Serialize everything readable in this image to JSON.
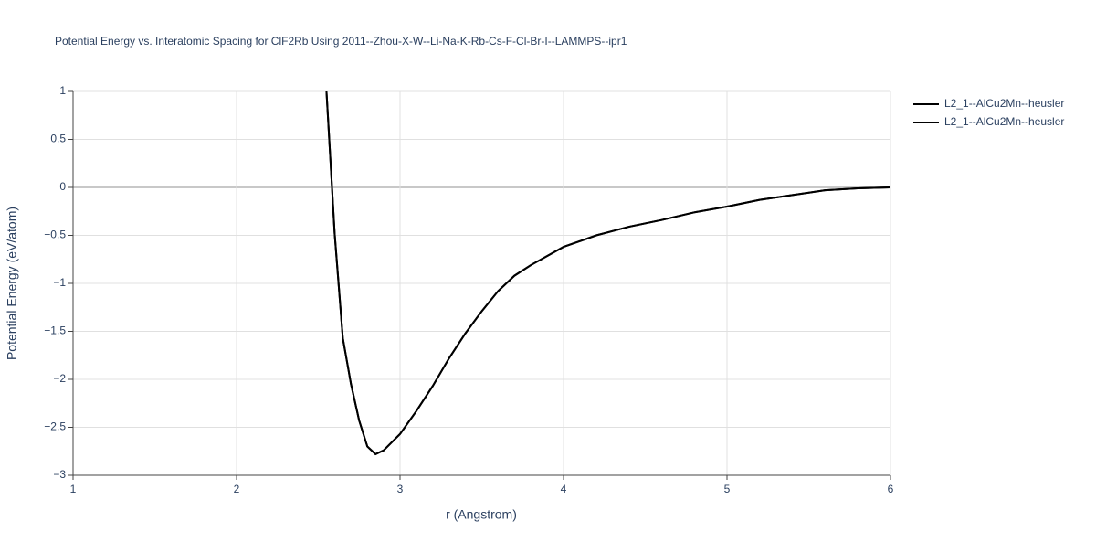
{
  "chart_data": {
    "type": "line",
    "title": "Potential Energy vs. Interatomic Spacing for ClF2Rb Using 2011--Zhou-X-W--Li-Na-K-Rb-Cs-F-Cl-Br-I--LAMMPS--ipr1",
    "x_label": "r (Angstrom)",
    "y_label": "Potential Energy (eV/atom)",
    "xlim": [
      1,
      6
    ],
    "ylim": [
      -3,
      1
    ],
    "xticks": [
      1,
      2,
      3,
      4,
      5,
      6
    ],
    "yticks": [
      {
        "value": -3,
        "label": "−3"
      },
      {
        "value": -2.5,
        "label": "−2.5"
      },
      {
        "value": -2,
        "label": "−2"
      },
      {
        "value": -1.5,
        "label": "−1.5"
      },
      {
        "value": -1,
        "label": "−1"
      },
      {
        "value": -0.5,
        "label": "−0.5"
      },
      0,
      0.5,
      1
    ],
    "grid": true,
    "x": [
      2.55,
      2.6,
      2.65,
      2.7,
      2.75,
      2.8,
      2.85,
      2.9,
      3.0,
      3.1,
      3.2,
      3.3,
      3.4,
      3.5,
      3.6,
      3.7,
      3.8,
      4.0,
      4.2,
      4.4,
      4.6,
      4.8,
      5.0,
      5.2,
      5.4,
      5.6,
      5.8,
      6.0
    ],
    "series": [
      {
        "name": "L2_1--AlCu2Mn--heusler",
        "color": "#000000",
        "values": [
          1.0,
          -0.48,
          -1.57,
          -2.05,
          -2.43,
          -2.7,
          -2.78,
          -2.74,
          -2.57,
          -2.33,
          -2.07,
          -1.78,
          -1.52,
          -1.29,
          -1.08,
          -0.92,
          -0.81,
          -0.62,
          -0.5,
          -0.41,
          -0.34,
          -0.26,
          -0.2,
          -0.13,
          -0.08,
          -0.03,
          -0.01,
          0
        ]
      },
      {
        "name": "L2_1--AlCu2Mn--heusler",
        "color": "#000000",
        "values": [
          1.0,
          -0.48,
          -1.57,
          -2.05,
          -2.43,
          -2.7,
          -2.78,
          -2.74,
          -2.57,
          -2.33,
          -2.07,
          -1.78,
          -1.52,
          -1.29,
          -1.08,
          -0.92,
          -0.81,
          -0.62,
          -0.5,
          -0.41,
          -0.34,
          -0.26,
          -0.2,
          -0.13,
          -0.08,
          -0.03,
          -0.01,
          0
        ]
      }
    ]
  }
}
